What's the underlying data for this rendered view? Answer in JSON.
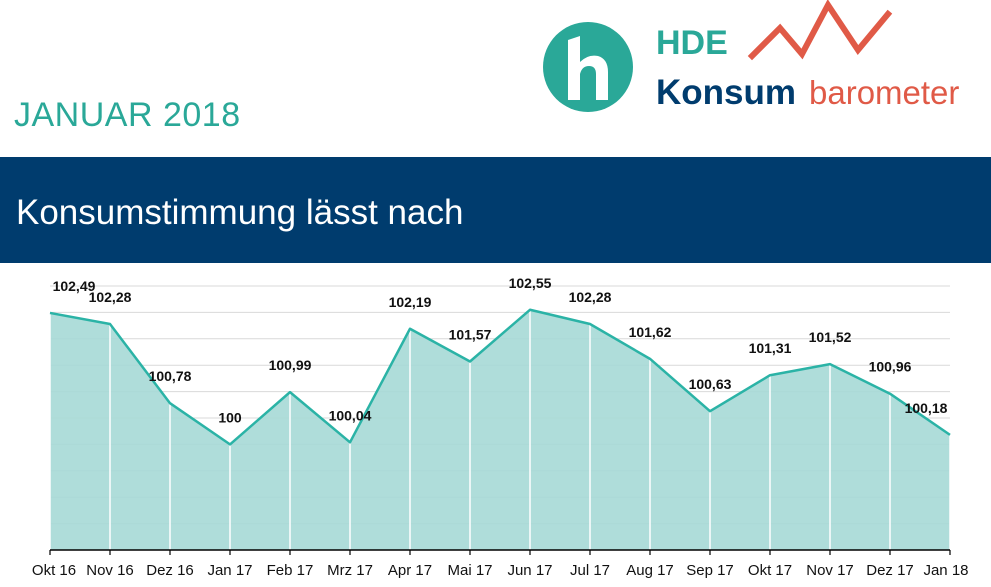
{
  "header": {
    "date": "JANUAR 2018",
    "logo_top": "HDE",
    "logo_bottom_1": "Konsum",
    "logo_bottom_2": "barometer",
    "colors": {
      "teal": "#2aa898",
      "navy": "#003c6e",
      "red": "#e05a47"
    }
  },
  "banner": {
    "title": "Konsumstimmung lässt nach"
  },
  "chart_data": {
    "type": "area",
    "title": "",
    "xlabel": "",
    "ylabel": "",
    "categories": [
      "Okt 16",
      "Nov 16",
      "Dez 16",
      "Jan 17",
      "Feb 17",
      "Mrz 17",
      "Apr 17",
      "Mai 17",
      "Jun 17",
      "Jul 17",
      "Aug 17",
      "Sep 17",
      "Okt 17",
      "Nov 17",
      "Dez 17",
      "Jan 18"
    ],
    "values": [
      102.49,
      102.28,
      100.78,
      100,
      100.99,
      100.04,
      102.19,
      101.57,
      102.55,
      102.28,
      101.62,
      100.63,
      101.31,
      101.52,
      100.96,
      100.18
    ],
    "value_labels": [
      "102,49",
      "102,28",
      "100,78",
      "100",
      "100,99",
      "100,04",
      "102,19",
      "101,57",
      "102,55",
      "102,28",
      "101,62",
      "100,63",
      "101,31",
      "101,52",
      "100,96",
      "100,18"
    ],
    "ylim": [
      98.0,
      103.0
    ],
    "grid": true,
    "legend": "none",
    "colors": {
      "line": "#2bb3a6",
      "fill": "#a6d9d6",
      "grid": "#d9d9d9",
      "axis": "#000000"
    }
  }
}
